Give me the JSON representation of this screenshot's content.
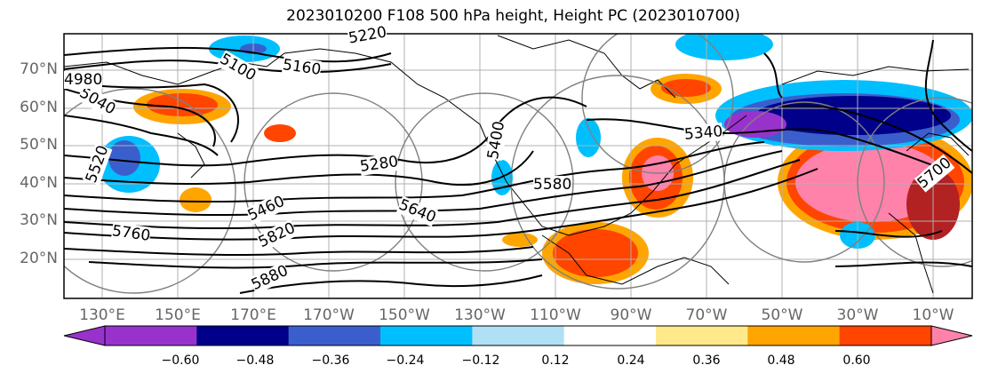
{
  "title": "2023010200 F108 500 hPa height, Height PC (2023010700)",
  "lat_labels": [
    "70°N",
    "60°N",
    "50°N",
    "40°N",
    "30°N",
    "20°N"
  ],
  "lon_labels": [
    "130°E",
    "150°E",
    "170°E",
    "170°W",
    "150°W",
    "130°W",
    "110°W",
    "90°W",
    "70°W",
    "50°W",
    "30°W",
    "10°W"
  ],
  "contour_labels": [
    "5220",
    "5160",
    "5100",
    "5040",
    "4980",
    "5280",
    "5340",
    "5400",
    "5460",
    "5520",
    "5580",
    "5640",
    "5700",
    "5760",
    "5820",
    "5880"
  ],
  "colorbar": {
    "ticks": [
      "−0.60",
      "−0.48",
      "−0.36",
      "−0.24",
      "−0.12",
      "0.12",
      "0.24",
      "0.36",
      "0.48",
      "0.60"
    ],
    "colors": [
      "#9932cc",
      "#00008b",
      "#3a5fcd",
      "#00bfff",
      "#b0e0f6",
      "#ffffff",
      "#ffe98a",
      "#ffa500",
      "#ff4500",
      "#b22222",
      "#ff82ab"
    ]
  }
}
